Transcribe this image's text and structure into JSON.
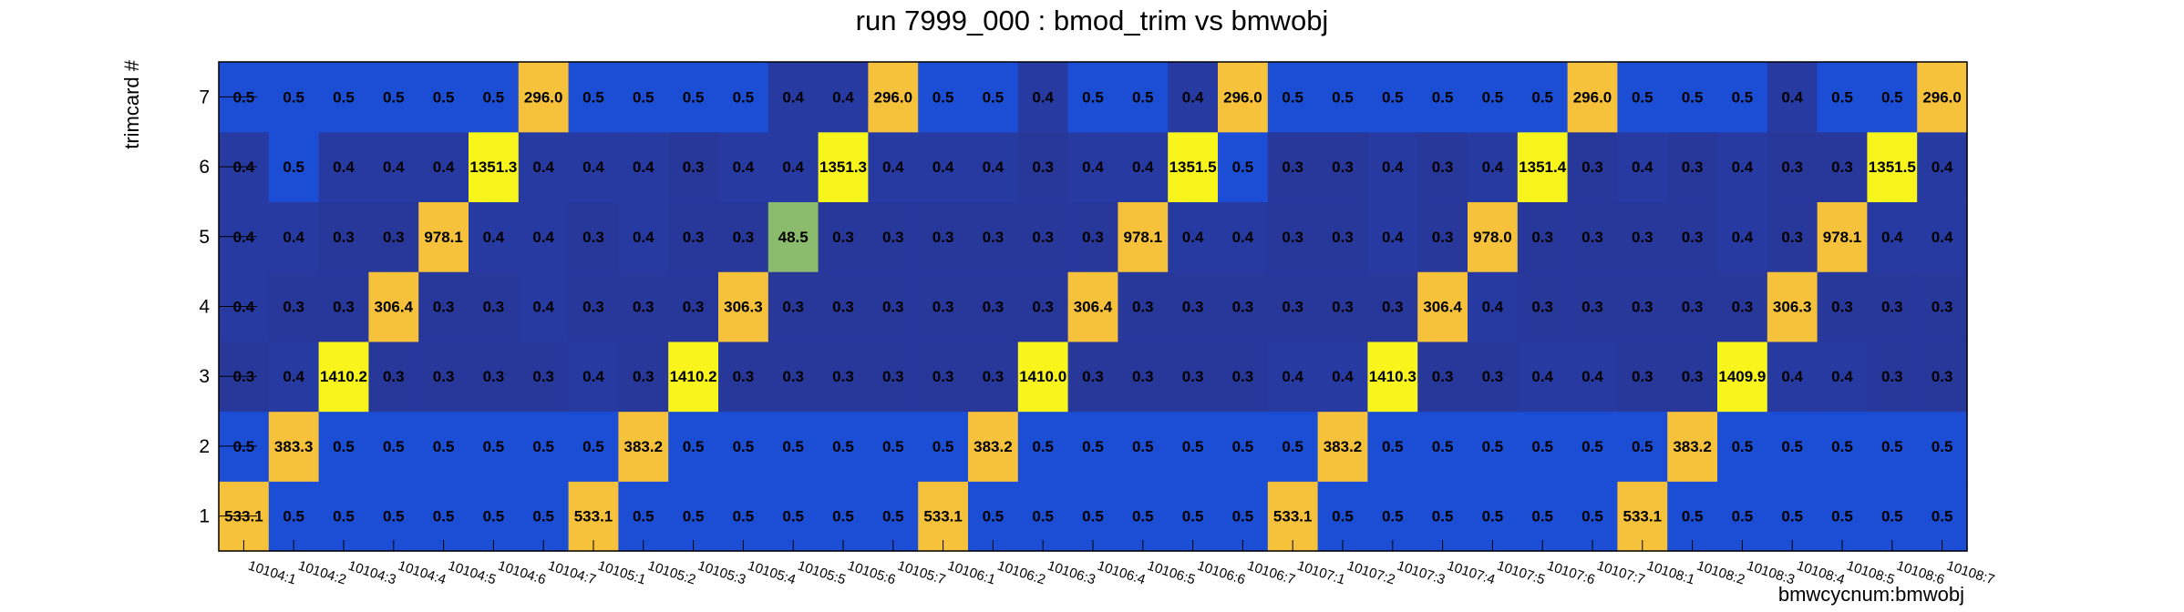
{
  "chart_data": {
    "type": "heatmap",
    "title": "run 7999_000 : bmod_trim vs bmwobj",
    "xlabel": "bmwcycnum:bmwobj",
    "ylabel": "trimcard #",
    "x_categories": [
      "10104:1",
      "10104:2",
      "10104:3",
      "10104:4",
      "10104:5",
      "10104:6",
      "10104:7",
      "10105:1",
      "10105:2",
      "10105:3",
      "10105:4",
      "10105:5",
      "10105:6",
      "10105:7",
      "10106:1",
      "10106:2",
      "10106:3",
      "10106:4",
      "10106:5",
      "10106:6",
      "10106:7",
      "10107:1",
      "10107:2",
      "10107:3",
      "10107:4",
      "10107:5",
      "10107:6",
      "10107:7",
      "10108:1",
      "10108:2",
      "10108:3",
      "10108:4",
      "10108:5",
      "10108:6",
      "10108:7"
    ],
    "y_categories": [
      "1",
      "2",
      "3",
      "4",
      "5",
      "6",
      "7"
    ],
    "z_labels": [
      [
        "533.1",
        "0.5",
        "0.5",
        "0.5",
        "0.5",
        "0.5",
        "0.5",
        "533.1",
        "0.5",
        "0.5",
        "0.5",
        "0.5",
        "0.5",
        "0.5",
        "533.1",
        "0.5",
        "0.5",
        "0.5",
        "0.5",
        "0.5",
        "0.5",
        "533.1",
        "0.5",
        "0.5",
        "0.5",
        "0.5",
        "0.5",
        "0.5",
        "533.1",
        "0.5",
        "0.5",
        "0.5",
        "0.5",
        "0.5",
        "0.5"
      ],
      [
        "0.5",
        "383.3",
        "0.5",
        "0.5",
        "0.5",
        "0.5",
        "0.5",
        "0.5",
        "383.2",
        "0.5",
        "0.5",
        "0.5",
        "0.5",
        "0.5",
        "0.5",
        "383.2",
        "0.5",
        "0.5",
        "0.5",
        "0.5",
        "0.5",
        "0.5",
        "383.2",
        "0.5",
        "0.5",
        "0.5",
        "0.5",
        "0.5",
        "0.5",
        "383.2",
        "0.5",
        "0.5",
        "0.5",
        "0.5",
        "0.5"
      ],
      [
        "0.3",
        "0.4",
        "1410.2",
        "0.3",
        "0.3",
        "0.3",
        "0.3",
        "0.4",
        "0.3",
        "1410.2",
        "0.3",
        "0.3",
        "0.3",
        "0.3",
        "0.3",
        "0.3",
        "1410.0",
        "0.3",
        "0.3",
        "0.3",
        "0.3",
        "0.4",
        "0.4",
        "1410.3",
        "0.3",
        "0.3",
        "0.4",
        "0.4",
        "0.3",
        "0.3",
        "1409.9",
        "0.4",
        "0.4",
        "0.3",
        "0.3"
      ],
      [
        "0.4",
        "0.3",
        "0.3",
        "306.4",
        "0.3",
        "0.3",
        "0.4",
        "0.3",
        "0.3",
        "0.3",
        "306.3",
        "0.3",
        "0.3",
        "0.3",
        "0.3",
        "0.3",
        "0.3",
        "306.4",
        "0.3",
        "0.3",
        "0.3",
        "0.3",
        "0.3",
        "0.3",
        "306.4",
        "0.4",
        "0.3",
        "0.3",
        "0.3",
        "0.3",
        "0.3",
        "306.3",
        "0.3",
        "0.3",
        "0.3"
      ],
      [
        "0.4",
        "0.4",
        "0.3",
        "0.3",
        "978.1",
        "0.4",
        "0.4",
        "0.3",
        "0.4",
        "0.3",
        "0.3",
        "48.5",
        "0.3",
        "0.3",
        "0.3",
        "0.3",
        "0.3",
        "0.3",
        "978.1",
        "0.4",
        "0.4",
        "0.3",
        "0.3",
        "0.4",
        "0.3",
        "978.0",
        "0.3",
        "0.3",
        "0.3",
        "0.3",
        "0.4",
        "0.3",
        "978.1",
        "0.4",
        "0.4"
      ],
      [
        "0.4",
        "0.5",
        "0.4",
        "0.4",
        "0.4",
        "1351.3",
        "0.4",
        "0.4",
        "0.4",
        "0.3",
        "0.4",
        "0.4",
        "1351.3",
        "0.4",
        "0.4",
        "0.4",
        "0.3",
        "0.4",
        "0.4",
        "1351.5",
        "0.5",
        "0.3",
        "0.3",
        "0.4",
        "0.3",
        "0.4",
        "1351.4",
        "0.3",
        "0.4",
        "0.3",
        "0.4",
        "0.3",
        "0.3",
        "1351.5",
        "0.4"
      ],
      [
        "0.5",
        "0.5",
        "0.5",
        "0.5",
        "0.5",
        "0.5",
        "296.0",
        "0.5",
        "0.5",
        "0.5",
        "0.5",
        "0.4",
        "0.4",
        "296.0",
        "0.5",
        "0.5",
        "0.4",
        "0.5",
        "0.5",
        "0.4",
        "296.0",
        "0.5",
        "0.5",
        "0.5",
        "0.5",
        "0.5",
        "0.5",
        "296.0",
        "0.5",
        "0.5",
        "0.5",
        "0.4",
        "0.5",
        "0.5",
        "296.0"
      ]
    ],
    "colors": {
      "low_0.3": "#27379a",
      "low_0.4": "#273aa2",
      "low_0.5": "#1b4dd5",
      "mid": "#8bbb6d",
      "high": "#f7c23b",
      "max": "#f8f51c"
    }
  }
}
